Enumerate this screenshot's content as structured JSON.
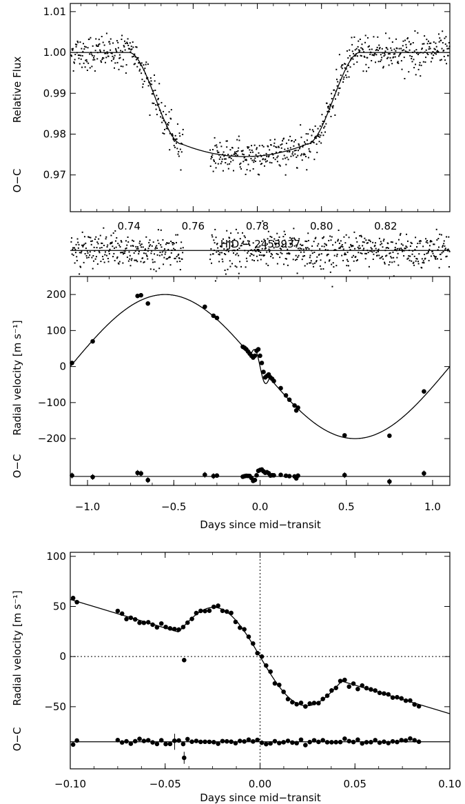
{
  "chart_data": [
    {
      "type": "scatter",
      "panel": "transit light curve",
      "xlabel": "HJD − 2453937",
      "ylabel": "Relative Flux",
      "residual_label": "O−C",
      "xlim": [
        0.7217,
        0.84
      ],
      "ylim": [
        0.961,
        1.012
      ],
      "xticks": [
        0.74,
        0.76,
        0.78,
        0.8,
        0.82
      ],
      "xtick_labels": [
        "0.74",
        "0.76",
        "0.78",
        "0.80",
        "0.82"
      ],
      "yticks": [
        0.97,
        0.98,
        0.99,
        1.0,
        1.01
      ],
      "ytick_labels": [
        "0.97",
        "0.98",
        "0.99",
        "1.00",
        "1.01"
      ],
      "model": {
        "name": "transit model",
        "baseline": 1.0,
        "depth_min": 0.9745,
        "ingress_start": 0.74,
        "ingress_end": 0.7565,
        "egress_start": 0.7955,
        "egress_end": 0.812
      },
      "observation_windows": [
        [
          0.7217,
          0.757
        ],
        [
          0.765,
          0.84
        ]
      ],
      "flux_scatter_sigma": 0.0022,
      "residual_offset": 0.9515,
      "residual_scatter_sigma": 0.0022
    },
    {
      "type": "scatter",
      "panel": "radial velocity orbit",
      "xlabel": "Days since mid−transit",
      "ylabel": "Radial velocity [m s⁻¹]",
      "residual_label": "O−C",
      "xlim": [
        -1.1,
        1.1
      ],
      "ylim": [
        -330,
        250
      ],
      "xticks": [
        -1.0,
        -0.5,
        0.0,
        0.5,
        1.0
      ],
      "xtick_labels": [
        "−1.0",
        "−0.5",
        "0.0",
        "0.5",
        "1.0"
      ],
      "yticks": [
        -200,
        -100,
        0,
        100,
        200
      ],
      "ytick_labels": [
        "−200",
        "−100",
        "0",
        "100",
        "200"
      ],
      "model": {
        "name": "orbit + Rossiter-McLaughlin",
        "amplitude": 200,
        "period": 2.2,
        "rm_amplitude": 30,
        "rm_center": 0.0
      },
      "residual_offset": -305,
      "points": [
        {
          "x": -1.09,
          "y": 10
        },
        {
          "x": -0.97,
          "y": 70
        },
        {
          "x": -0.71,
          "y": 196
        },
        {
          "x": -0.69,
          "y": 198
        },
        {
          "x": -0.65,
          "y": 175
        },
        {
          "x": -0.32,
          "y": 166
        },
        {
          "x": -0.27,
          "y": 141
        },
        {
          "x": -0.25,
          "y": 135
        },
        {
          "x": -0.1,
          "y": 55
        },
        {
          "x": -0.09,
          "y": 52
        },
        {
          "x": -0.08,
          "y": 48
        },
        {
          "x": -0.07,
          "y": 42
        },
        {
          "x": -0.06,
          "y": 36
        },
        {
          "x": -0.05,
          "y": 30
        },
        {
          "x": -0.04,
          "y": 25
        },
        {
          "x": -0.03,
          "y": 30
        },
        {
          "x": -0.02,
          "y": 44
        },
        {
          "x": -0.01,
          "y": 48
        },
        {
          "x": 0.0,
          "y": 30
        },
        {
          "x": 0.01,
          "y": 10
        },
        {
          "x": 0.02,
          "y": -15
        },
        {
          "x": 0.03,
          "y": -30
        },
        {
          "x": 0.04,
          "y": -26
        },
        {
          "x": 0.05,
          "y": -22
        },
        {
          "x": 0.06,
          "y": -30
        },
        {
          "x": 0.07,
          "y": -34
        },
        {
          "x": 0.08,
          "y": -40
        },
        {
          "x": 0.12,
          "y": -60
        },
        {
          "x": 0.15,
          "y": -80
        },
        {
          "x": 0.17,
          "y": -92
        },
        {
          "x": 0.2,
          "y": -108
        },
        {
          "x": 0.21,
          "y": -122
        },
        {
          "x": 0.22,
          "y": -114
        },
        {
          "x": 0.49,
          "y": -191
        },
        {
          "x": 0.75,
          "y": -192
        },
        {
          "x": 0.95,
          "y": -69
        }
      ]
    },
    {
      "type": "scatter",
      "panel": "Rossiter-McLaughlin zoom",
      "xlabel": "Days since mid−transit",
      "ylabel": "Radial velocity [m s⁻¹]",
      "residual_label": "O−C",
      "xlim": [
        -0.1,
        0.1
      ],
      "ylim": [
        -112,
        104
      ],
      "xticks": [
        -0.1,
        -0.05,
        0.0,
        0.05,
        0.1
      ],
      "xtick_labels": [
        "−0.10",
        "−0.05",
        "0.00",
        "0.05",
        "0.10"
      ],
      "yticks": [
        -50,
        0,
        50,
        100
      ],
      "ytick_labels": [
        "−50",
        "0",
        "50",
        "100"
      ],
      "reference_lines": {
        "x": 0.0,
        "y": 0
      },
      "residual_offset": -85,
      "outlier": {
        "x": -0.04,
        "y": -3.5,
        "residual": -101
      },
      "error_bar_point": {
        "x": -0.045,
        "residual": -85,
        "error": 8
      }
    }
  ]
}
